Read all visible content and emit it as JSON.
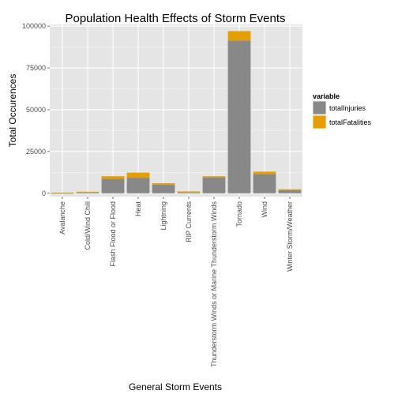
{
  "chart_data": {
    "type": "bar",
    "stacked": true,
    "title": "Population Health Effects of Storm Events",
    "xlabel": "General Storm Events",
    "ylabel": "Total Occurences",
    "ylim": [
      -2000,
      101000
    ],
    "yticks": [
      0,
      25000,
      50000,
      75000,
      100000
    ],
    "ytick_labels": [
      "0",
      "25000",
      "50000",
      "75000",
      "100000"
    ],
    "grid": true,
    "categories": [
      "Avalanche",
      "Cold/Wind Chill",
      "Flash Flood or Flood",
      "Heat",
      "Lightning",
      "RIP Currents",
      "Thunderstorm Winds or Marine Thunderstorm Winds",
      "Tornado",
      "Wind",
      "Winter Storm/Weather"
    ],
    "series": [
      {
        "name": "totalInjuries",
        "color": "#888888",
        "values": [
          170,
          480,
          8600,
          9300,
          5200,
          530,
          9500,
          91400,
          11500,
          1900
        ]
      },
      {
        "name": "totalFatalities",
        "color": "#e69f00",
        "values": [
          225,
          460,
          1600,
          3100,
          820,
          580,
          700,
          5630,
          1450,
          500
        ]
      }
    ],
    "legend": {
      "title": "variable",
      "position": "right"
    },
    "panel_background": "#e5e5e5",
    "grid_color": "#ffffff"
  }
}
